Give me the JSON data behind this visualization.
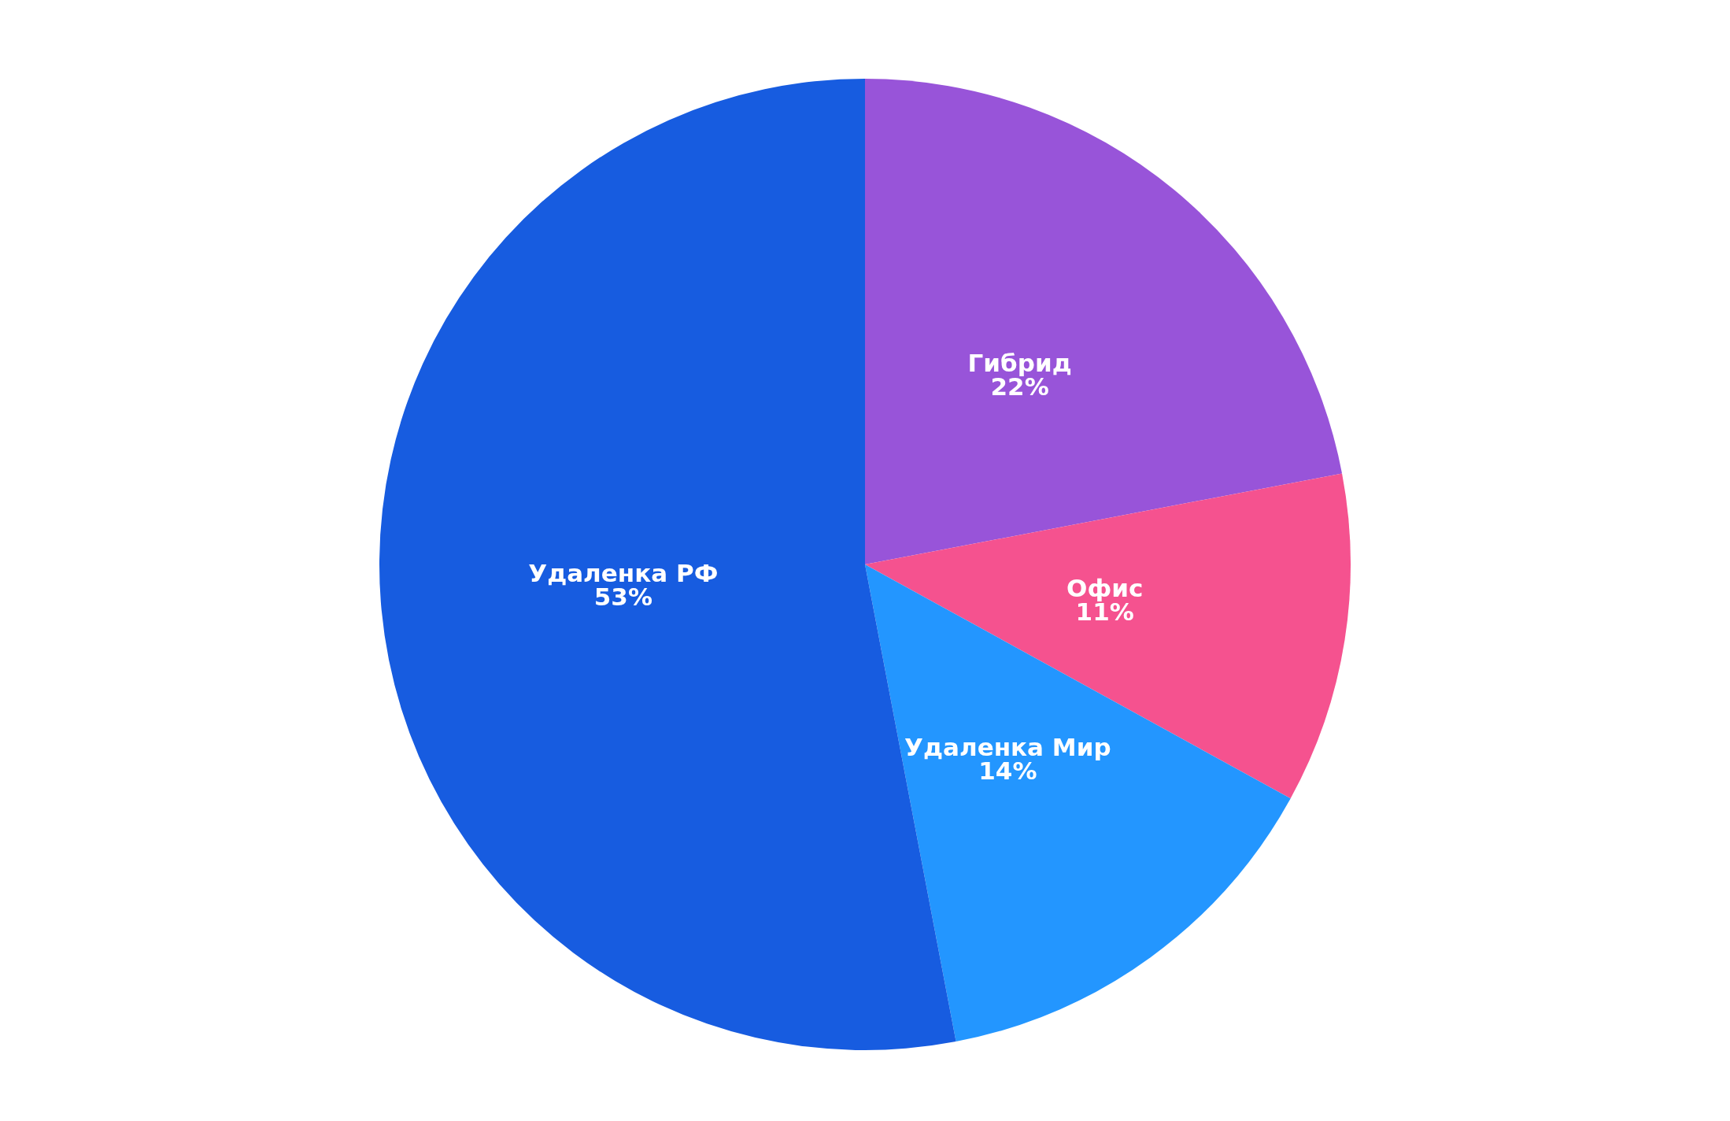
{
  "chart_data": {
    "type": "pie",
    "categories": [
      "Гибрид",
      "Офис",
      "Удаленка Мир",
      "Удаленка РФ"
    ],
    "values": [
      22,
      11,
      14,
      53
    ],
    "colors": [
      "#9854d9",
      "#f5528f",
      "#2396ff",
      "#175ce0"
    ],
    "value_labels": [
      "22%",
      "11%",
      "14%",
      "53%"
    ],
    "legend": false
  }
}
